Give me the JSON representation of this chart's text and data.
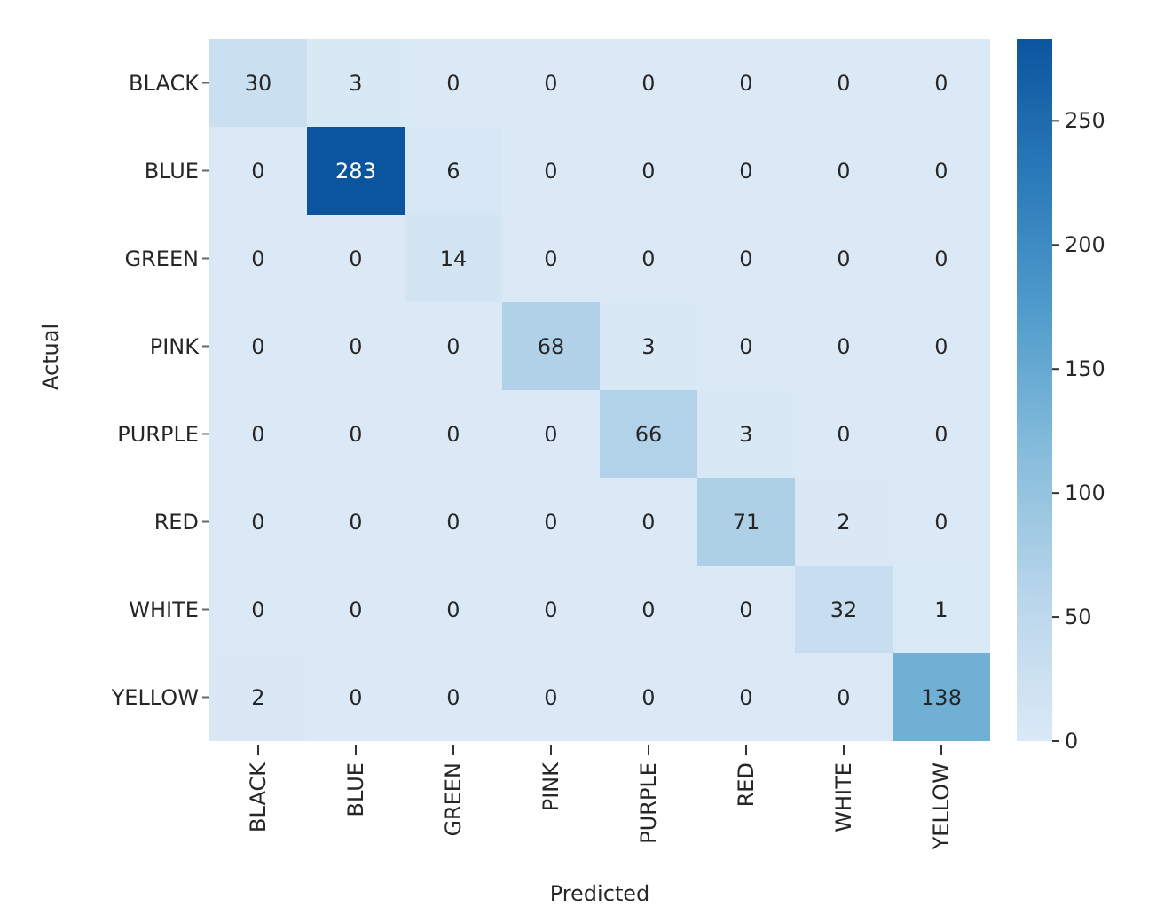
{
  "chart_data": {
    "type": "heatmap",
    "xlabel": "Predicted",
    "ylabel": "Actual",
    "categories": [
      "BLACK",
      "BLUE",
      "GREEN",
      "PINK",
      "PURPLE",
      "RED",
      "WHITE",
      "YELLOW"
    ],
    "y_categories": [
      "BLACK",
      "BLUE",
      "GREEN",
      "PINK",
      "PURPLE",
      "RED",
      "WHITE",
      "YELLOW"
    ],
    "cells": [
      [
        30,
        3,
        0,
        0,
        0,
        0,
        0,
        0
      ],
      [
        0,
        283,
        6,
        0,
        0,
        0,
        0,
        0
      ],
      [
        0,
        0,
        14,
        0,
        0,
        0,
        0,
        0
      ],
      [
        0,
        0,
        0,
        68,
        3,
        0,
        0,
        0
      ],
      [
        0,
        0,
        0,
        0,
        66,
        3,
        0,
        0
      ],
      [
        0,
        0,
        0,
        0,
        0,
        71,
        2,
        0
      ],
      [
        0,
        0,
        0,
        0,
        0,
        0,
        32,
        1
      ],
      [
        2,
        0,
        0,
        0,
        0,
        0,
        0,
        138
      ]
    ],
    "data_labels": true,
    "clim": [
      0,
      283
    ],
    "cticks": [
      0,
      50,
      100,
      150,
      200,
      250
    ]
  }
}
